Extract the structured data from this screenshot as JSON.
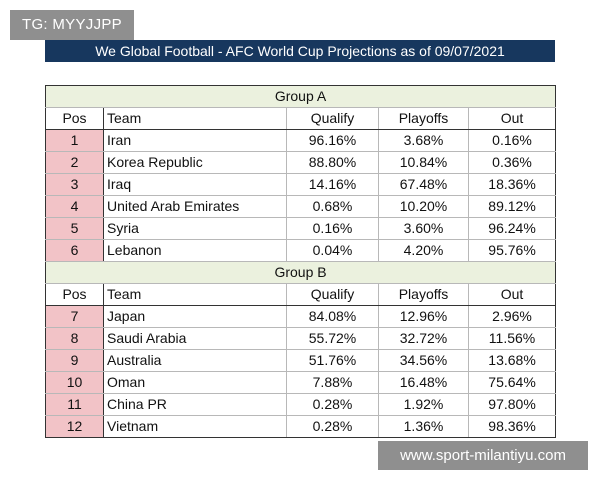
{
  "watermarks": {
    "top_left": "TG: MYYJJPP",
    "bottom_right": "www.sport-milantiyu.com"
  },
  "title": "We Global Football - AFC World Cup Projections as of 09/07/2021",
  "columns": {
    "pos": "Pos",
    "team": "Team",
    "qualify": "Qualify",
    "playoffs": "Playoffs",
    "out": "Out"
  },
  "group_a": {
    "label": "Group A",
    "rows": [
      {
        "pos": "1",
        "team": "Iran",
        "qualify": "96.16%",
        "playoffs": "3.68%",
        "out": "0.16%"
      },
      {
        "pos": "2",
        "team": "Korea Republic",
        "qualify": "88.80%",
        "playoffs": "10.84%",
        "out": "0.36%"
      },
      {
        "pos": "3",
        "team": "Iraq",
        "qualify": "14.16%",
        "playoffs": "67.48%",
        "out": "18.36%"
      },
      {
        "pos": "4",
        "team": "United Arab Emirates",
        "qualify": "0.68%",
        "playoffs": "10.20%",
        "out": "89.12%"
      },
      {
        "pos": "5",
        "team": "Syria",
        "qualify": "0.16%",
        "playoffs": "3.60%",
        "out": "96.24%"
      },
      {
        "pos": "6",
        "team": "Lebanon",
        "qualify": "0.04%",
        "playoffs": "4.20%",
        "out": "95.76%"
      }
    ]
  },
  "group_b": {
    "label": "Group B",
    "rows": [
      {
        "pos": "7",
        "team": "Japan",
        "qualify": "84.08%",
        "playoffs": "12.96%",
        "out": "2.96%"
      },
      {
        "pos": "8",
        "team": "Saudi Arabia",
        "qualify": "55.72%",
        "playoffs": "32.72%",
        "out": "11.56%"
      },
      {
        "pos": "9",
        "team": "Australia",
        "qualify": "51.76%",
        "playoffs": "34.56%",
        "out": "13.68%"
      },
      {
        "pos": "10",
        "team": "Oman",
        "qualify": "7.88%",
        "playoffs": "16.48%",
        "out": "75.64%"
      },
      {
        "pos": "11",
        "team": "China PR",
        "qualify": "0.28%",
        "playoffs": "1.92%",
        "out": "97.80%"
      },
      {
        "pos": "12",
        "team": "Vietnam",
        "qualify": "0.28%",
        "playoffs": "1.36%",
        "out": "98.36%"
      }
    ]
  },
  "colors": {
    "title_bar": "#17375e",
    "group_header": "#ebf1de",
    "pos_cell": "#f2c3c7",
    "watermark": "#8f8f8f"
  }
}
